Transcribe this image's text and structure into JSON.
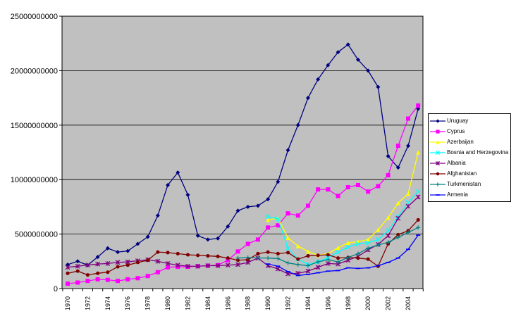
{
  "figure": {
    "background": "#ffffff",
    "plot_background": "#c0c0c0",
    "axis_color": "#000000",
    "gridline_color": "#000000"
  },
  "chart_data": {
    "type": "line",
    "title": "",
    "xlabel": "",
    "ylabel": "",
    "grid": true,
    "legend_position": "right",
    "value_unit": "US$ (series values stored in billions, axis shows raw values)",
    "x_start": 1970,
    "x_end": 2005,
    "x_tick_labels": [
      "1970",
      "1972",
      "1974",
      "1976",
      "1978",
      "1980",
      "1982",
      "1984",
      "1986",
      "1988",
      "1990",
      "1992",
      "1994",
      "1996",
      "1998",
      "2000",
      "2002",
      "2004"
    ],
    "y_tick_labels": [
      "0",
      "5000000000",
      "10000000000",
      "15000000000",
      "20000000000",
      "25000000000"
    ],
    "ylim_billions": [
      0,
      25
    ],
    "y_major_step_billions": 5,
    "series": [
      {
        "name": "Uruguay",
        "color": "#000080",
        "marker": "diamond",
        "start_year": 1970,
        "values_billions": [
          2.2,
          2.5,
          2.15,
          2.9,
          3.7,
          3.35,
          3.45,
          4.1,
          4.75,
          6.7,
          9.5,
          10.65,
          8.6,
          4.85,
          4.5,
          4.6,
          5.7,
          7.15,
          7.5,
          7.6,
          8.2,
          9.8,
          12.7,
          15.0,
          17.5,
          19.2,
          20.5,
          21.7,
          22.4,
          21.0,
          20.0,
          18.5,
          12.15,
          11.1,
          13.1,
          16.5
        ]
      },
      {
        "name": "Cyprus",
        "color": "#ff00ff",
        "marker": "square",
        "start_year": 1970,
        "values_billions": [
          0.45,
          0.55,
          0.7,
          0.85,
          0.8,
          0.7,
          0.85,
          0.95,
          1.15,
          1.5,
          1.95,
          2.0,
          2.0,
          2.05,
          2.1,
          2.15,
          2.6,
          3.4,
          4.1,
          4.5,
          5.6,
          5.8,
          6.9,
          6.7,
          7.6,
          9.1,
          9.1,
          8.5,
          9.3,
          9.5,
          8.9,
          9.4,
          10.4,
          13.1,
          15.6,
          16.8
        ]
      },
      {
        "name": "Azerbaijan",
        "color": "#ffff00",
        "marker": "triangle",
        "start_year": 1990,
        "values_billions": [
          6.3,
          6.45,
          4.65,
          3.9,
          3.4,
          3.05,
          3.2,
          3.75,
          4.2,
          4.3,
          4.5,
          5.4,
          6.5,
          7.85,
          8.7,
          12.5
        ]
      },
      {
        "name": "Bosnia and Herzegovina",
        "color": "#00ffff",
        "marker": "x",
        "start_year": 1990,
        "values_billions": [
          6.6,
          6.4,
          3.7,
          2.7,
          2.2,
          2.45,
          2.85,
          3.35,
          3.8,
          4.1,
          4.2,
          4.5,
          5.3,
          6.6,
          7.9,
          8.9
        ]
      },
      {
        "name": "Albania",
        "color": "#800080",
        "marker": "asterisk",
        "start_year": 1970,
        "values_billions": [
          1.95,
          2.05,
          2.15,
          2.25,
          2.3,
          2.4,
          2.45,
          2.55,
          2.65,
          2.5,
          2.3,
          2.15,
          2.05,
          2.05,
          2.1,
          2.1,
          2.15,
          2.2,
          2.4,
          2.8,
          2.1,
          1.8,
          1.35,
          1.4,
          1.6,
          1.95,
          2.3,
          2.25,
          2.6,
          2.95,
          3.55,
          4.05,
          4.85,
          6.45,
          7.55,
          8.4
        ]
      },
      {
        "name": "Afghanistan",
        "color": "#800000",
        "marker": "circle",
        "start_year": 1970,
        "values_billions": [
          1.4,
          1.6,
          1.25,
          1.4,
          1.5,
          2.0,
          2.15,
          2.4,
          2.6,
          3.35,
          3.3,
          3.2,
          3.1,
          3.05,
          3.0,
          2.95,
          2.8,
          2.6,
          2.65,
          3.2,
          3.35,
          3.2,
          3.3,
          2.7,
          3.0,
          3.05,
          3.1,
          2.8,
          2.85,
          2.8,
          2.7,
          2.05,
          4.1,
          4.95,
          5.3,
          6.3
        ]
      },
      {
        "name": "Turkmenistan",
        "color": "#008080",
        "marker": "plus",
        "start_year": 1987,
        "values_billions": [
          2.8,
          2.85,
          2.8,
          2.8,
          2.75,
          2.35,
          2.2,
          2.1,
          2.45,
          2.65,
          2.45,
          2.85,
          3.2,
          3.7,
          4.0,
          4.25,
          4.7,
          5.15,
          5.6
        ]
      },
      {
        "name": "Armenia",
        "color": "#0000ff",
        "marker": "dash",
        "start_year": 1990,
        "values_billions": [
          2.25,
          2.05,
          1.55,
          1.2,
          1.3,
          1.45,
          1.6,
          1.65,
          1.9,
          1.85,
          1.9,
          2.1,
          2.4,
          2.8,
          3.6,
          4.9
        ]
      }
    ]
  }
}
